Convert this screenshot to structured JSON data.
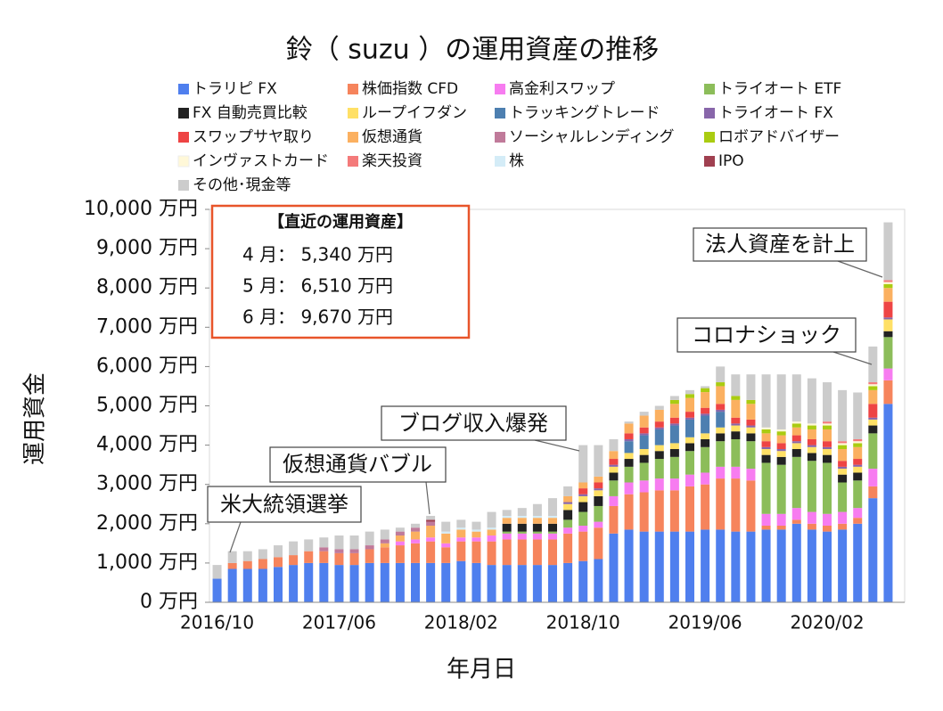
{
  "chart_data": {
    "type": "stacked_bar",
    "title": "鈴（ suzu ）の運用資産の推移",
    "y_label": "運用資金",
    "x_label": "年月日",
    "categories": [
      "2016/10",
      null,
      null,
      null,
      null,
      null,
      null,
      null,
      "2017/06",
      null,
      null,
      null,
      null,
      null,
      null,
      null,
      "2018/02",
      null,
      null,
      null,
      null,
      null,
      null,
      null,
      "2018/10",
      null,
      null,
      null,
      null,
      null,
      null,
      null,
      "2019/06",
      null,
      null,
      null,
      null,
      null,
      null,
      null,
      "2020/02",
      null,
      null,
      null,
      null
    ],
    "ylim": [
      0,
      10000
    ],
    "yticks": [
      {
        "value": 0,
        "label": "0 万円"
      },
      {
        "value": 1000,
        "label": "1,000 万円"
      },
      {
        "value": 2000,
        "label": "2,000 万円"
      },
      {
        "value": 3000,
        "label": "3,000 万円"
      },
      {
        "value": 4000,
        "label": "4,000 万円"
      },
      {
        "value": 5000,
        "label": "5,000 万円"
      },
      {
        "value": 6000,
        "label": "6,000 万円"
      },
      {
        "value": 7000,
        "label": "7,000 万円"
      },
      {
        "value": 8000,
        "label": "8,000 万円"
      },
      {
        "value": 9000,
        "label": "9,000 万円"
      },
      {
        "value": 10000,
        "label": "10,000 万円"
      }
    ],
    "grid": false,
    "series": [
      {
        "name": "トラリピ FX",
        "color": "#4f7fee",
        "values": [
          600,
          850,
          850,
          850,
          900,
          950,
          1000,
          1000,
          950,
          950,
          1000,
          1000,
          1000,
          1000,
          1000,
          1000,
          1050,
          1000,
          950,
          950,
          950,
          950,
          950,
          1000,
          1050,
          1100,
          1750,
          1850,
          1800,
          1800,
          1800,
          1800,
          1850,
          1850,
          1800,
          1800,
          1850,
          1850,
          2000,
          1850,
          1800,
          1850,
          2000,
          2650,
          5050
        ]
      },
      {
        "name": "株価指数 CFD",
        "color": "#f6845c",
        "values": [
          0,
          150,
          200,
          250,
          250,
          250,
          300,
          300,
          300,
          300,
          350,
          400,
          450,
          500,
          550,
          400,
          500,
          550,
          600,
          650,
          650,
          650,
          650,
          750,
          750,
          800,
          700,
          900,
          1000,
          1050,
          1050,
          1150,
          1150,
          1300,
          1350,
          1300,
          100,
          100,
          100,
          150,
          150,
          150,
          150,
          300,
          600
        ]
      },
      {
        "name": "高金利スワップ",
        "color": "#f77cf0",
        "values": [
          0,
          0,
          0,
          0,
          0,
          0,
          0,
          0,
          0,
          0,
          0,
          0,
          100,
          100,
          100,
          100,
          100,
          100,
          150,
          150,
          150,
          150,
          150,
          150,
          150,
          150,
          250,
          300,
          300,
          300,
          300,
          300,
          300,
          300,
          300,
          300,
          300,
          300,
          300,
          300,
          300,
          300,
          250,
          450,
          300
        ]
      },
      {
        "name": "トライオート ETF",
        "color": "#8cbd5a",
        "values": [
          0,
          0,
          0,
          0,
          0,
          0,
          0,
          0,
          0,
          0,
          0,
          0,
          0,
          0,
          0,
          0,
          0,
          0,
          0,
          50,
          50,
          50,
          50,
          200,
          350,
          400,
          400,
          400,
          450,
          500,
          550,
          600,
          650,
          650,
          700,
          700,
          1300,
          1250,
          1300,
          1300,
          1300,
          750,
          700,
          900,
          800
        ]
      },
      {
        "name": "FX 自動売買比較",
        "color": "#222222",
        "values": [
          0,
          0,
          0,
          0,
          0,
          0,
          0,
          0,
          0,
          0,
          0,
          0,
          0,
          0,
          0,
          0,
          0,
          0,
          0,
          200,
          200,
          200,
          200,
          250,
          250,
          250,
          200,
          200,
          200,
          200,
          200,
          200,
          200,
          200,
          200,
          200,
          200,
          200,
          200,
          200,
          200,
          200,
          200,
          200,
          150
        ]
      },
      {
        "name": "ループイフダン",
        "color": "#ffe066",
        "values": [
          0,
          0,
          0,
          0,
          0,
          0,
          0,
          0,
          0,
          0,
          0,
          0,
          0,
          0,
          0,
          0,
          0,
          0,
          0,
          0,
          0,
          0,
          0,
          150,
          150,
          150,
          150,
          150,
          150,
          150,
          150,
          150,
          150,
          150,
          150,
          150,
          150,
          150,
          150,
          150,
          150,
          150,
          150,
          150,
          300
        ]
      },
      {
        "name": "トラッキングトレード",
        "color": "#4d7fb0",
        "values": [
          0,
          0,
          0,
          0,
          0,
          0,
          0,
          0,
          0,
          0,
          0,
          0,
          0,
          0,
          0,
          0,
          0,
          0,
          0,
          0,
          0,
          0,
          0,
          0,
          0,
          0,
          0,
          300,
          350,
          400,
          450,
          450,
          450,
          400,
          0,
          0,
          0,
          0,
          0,
          0,
          0,
          0,
          0,
          0,
          0
        ]
      },
      {
        "name": "トライオート FX",
        "color": "#8866aa",
        "values": [
          0,
          0,
          0,
          0,
          0,
          0,
          0,
          0,
          0,
          0,
          0,
          0,
          0,
          0,
          0,
          0,
          0,
          0,
          0,
          0,
          0,
          0,
          0,
          50,
          50,
          50,
          50,
          50,
          50,
          50,
          50,
          50,
          50,
          50,
          50,
          50,
          50,
          50,
          50,
          50,
          50,
          50,
          50,
          50,
          50
        ]
      },
      {
        "name": "スワップサヤ取り",
        "color": "#ee4444",
        "values": [
          0,
          0,
          0,
          0,
          0,
          0,
          0,
          0,
          0,
          0,
          0,
          0,
          0,
          0,
          0,
          0,
          0,
          0,
          0,
          0,
          0,
          0,
          0,
          0,
          150,
          150,
          150,
          150,
          150,
          150,
          150,
          150,
          150,
          150,
          150,
          150,
          150,
          150,
          150,
          150,
          150,
          150,
          150,
          350,
          400
        ]
      },
      {
        "name": "仮想通貨",
        "color": "#fbb060",
        "values": [
          0,
          0,
          0,
          0,
          0,
          0,
          0,
          0,
          0,
          0,
          0,
          100,
          150,
          200,
          300,
          250,
          200,
          150,
          150,
          150,
          150,
          150,
          150,
          150,
          150,
          150,
          200,
          250,
          300,
          300,
          350,
          350,
          400,
          450,
          450,
          400,
          200,
          200,
          200,
          250,
          300,
          300,
          300,
          350,
          350
        ]
      },
      {
        "name": "ソーシャルレンディング",
        "color": "#c07a9a",
        "values": [
          0,
          0,
          0,
          0,
          0,
          0,
          0,
          100,
          100,
          100,
          100,
          100,
          100,
          100,
          100,
          0,
          0,
          0,
          0,
          0,
          0,
          0,
          0,
          0,
          0,
          0,
          0,
          0,
          0,
          0,
          0,
          0,
          0,
          0,
          0,
          0,
          0,
          0,
          0,
          0,
          0,
          0,
          0,
          0,
          0
        ]
      },
      {
        "name": "ロボアドバイザー",
        "color": "#aacc11",
        "values": [
          0,
          0,
          0,
          0,
          0,
          0,
          0,
          0,
          0,
          0,
          0,
          0,
          0,
          0,
          0,
          0,
          0,
          0,
          0,
          0,
          0,
          0,
          0,
          0,
          0,
          0,
          0,
          0,
          0,
          0,
          100,
          100,
          100,
          100,
          100,
          100,
          100,
          100,
          100,
          100,
          100,
          100,
          100,
          100,
          100
        ]
      },
      {
        "name": "インヴァストカード",
        "color": "#fff8d8",
        "values": [
          0,
          0,
          0,
          0,
          0,
          0,
          0,
          0,
          0,
          0,
          0,
          0,
          0,
          0,
          0,
          0,
          0,
          0,
          0,
          0,
          0,
          0,
          0,
          0,
          0,
          0,
          0,
          0,
          0,
          0,
          0,
          0,
          0,
          0,
          0,
          0,
          50,
          50,
          50,
          50,
          50,
          50,
          50,
          50,
          50
        ]
      },
      {
        "name": "楽天投資",
        "color": "#f47a7a",
        "values": [
          0,
          0,
          0,
          0,
          0,
          0,
          0,
          0,
          0,
          0,
          0,
          0,
          0,
          0,
          0,
          0,
          0,
          0,
          0,
          0,
          0,
          0,
          0,
          0,
          0,
          0,
          0,
          0,
          0,
          0,
          0,
          0,
          0,
          0,
          0,
          0,
          0,
          0,
          0,
          0,
          50,
          50,
          50,
          50,
          50
        ]
      },
      {
        "name": "株",
        "color": "#d4ecf7",
        "values": [
          0,
          0,
          0,
          0,
          0,
          0,
          0,
          0,
          0,
          0,
          0,
          0,
          0,
          0,
          0,
          50,
          50,
          50,
          50,
          50,
          50,
          50,
          50,
          0,
          0,
          0,
          0,
          0,
          0,
          0,
          0,
          0,
          0,
          0,
          0,
          0,
          0,
          0,
          0,
          0,
          0,
          0,
          0,
          0,
          0
        ]
      },
      {
        "name": "IPO",
        "color": "#a04050",
        "values": [
          0,
          0,
          0,
          0,
          0,
          0,
          0,
          0,
          0,
          0,
          0,
          0,
          0,
          0,
          50,
          0,
          0,
          0,
          0,
          0,
          0,
          0,
          0,
          0,
          0,
          0,
          0,
          0,
          0,
          0,
          0,
          0,
          0,
          0,
          0,
          0,
          0,
          0,
          0,
          0,
          0,
          0,
          0,
          0,
          0
        ]
      },
      {
        "name": "その他･現金等",
        "color": "#cccccc",
        "values": [
          350,
          300,
          250,
          250,
          300,
          350,
          300,
          250,
          350,
          350,
          350,
          250,
          100,
          100,
          100,
          250,
          200,
          200,
          400,
          150,
          200,
          300,
          450,
          250,
          950,
          800,
          300,
          50,
          100,
          100,
          100,
          100,
          50,
          400,
          550,
          650,
          1350,
          1400,
          1200,
          1150,
          1000,
          1300,
          1190,
          910,
          1470
        ]
      }
    ],
    "annotations": [
      "米大統領選挙",
      "仮想通貨バブル",
      "ブログ収入爆発",
      "コロナショック",
      "法人資産を計上"
    ],
    "summary_box": {
      "title": "【直近の運用資産】",
      "lines": [
        "4 月： 5,340 万円",
        "5 月： 6,510 万円",
        "6 月： 9,670 万円"
      ]
    }
  }
}
